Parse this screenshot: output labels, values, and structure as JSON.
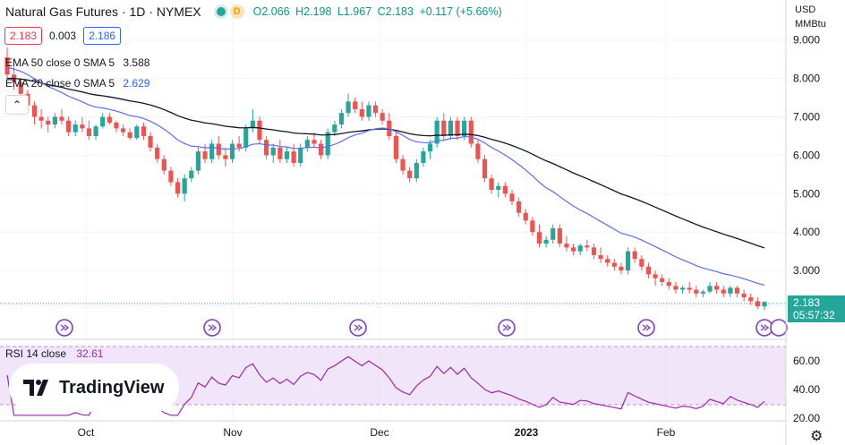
{
  "header": {
    "symbol": "Natural Gas Futures · 1D · NYMEX",
    "dot_label": "D",
    "open": "O2.066",
    "high": "H2.198",
    "low": "L1.967",
    "close": "C2.183",
    "change": "+0.117 (+5.66%)"
  },
  "prices": {
    "sell": "2.183",
    "spread": "0.003",
    "buy": "2.186"
  },
  "indicators": [
    {
      "label": "EMA 50 close 0 SMA 5",
      "value": "3.588"
    },
    {
      "label": "EMA 20 close 0 SMA 5",
      "value": "2.629"
    }
  ],
  "collapse_icon": "chevron-up-icon",
  "axis": {
    "currency": "USD",
    "unit": "MMBtu",
    "price_ticks": [
      "9.000",
      "8.000",
      "7.000",
      "6.000",
      "5.000",
      "4.000",
      "3.000"
    ],
    "last_price": "2.183",
    "countdown": "05:57:32",
    "rsi_ticks": [
      "60.00",
      "40.00",
      "20.00"
    ],
    "time_ticks": [
      "Oct",
      "Nov",
      "Dec",
      "2023",
      "Feb"
    ]
  },
  "rsi": {
    "label": "RSI 14 close",
    "value": "32.61"
  },
  "logo": {
    "text": "TradingView"
  },
  "colors": {
    "up": "#26a69a",
    "down": "#ef5350",
    "ema50": "#131722",
    "ema20": "#5b6cf2",
    "rsi": "#9c27b0",
    "rsi_band": "#ecdff7"
  },
  "chart_data": {
    "type": "candlestick",
    "title": "Natural Gas Futures · 1D · NYMEX",
    "x_ticks": [
      "Oct",
      "Nov",
      "Dec",
      "2023",
      "Feb"
    ],
    "ylim": [
      2.0,
      9.3
    ],
    "candles": [
      [
        8.55,
        8.8,
        8.0,
        8.1
      ],
      [
        8.1,
        8.3,
        7.7,
        7.9
      ],
      [
        7.9,
        8.0,
        7.5,
        7.6
      ],
      [
        7.6,
        7.7,
        7.2,
        7.3
      ],
      [
        7.3,
        7.4,
        6.8,
        7.0
      ],
      [
        7.0,
        7.2,
        6.7,
        6.9
      ],
      [
        6.9,
        7.0,
        6.6,
        6.8
      ],
      [
        6.8,
        7.1,
        6.7,
        7.0
      ],
      [
        7.0,
        7.2,
        6.8,
        6.9
      ],
      [
        6.9,
        7.0,
        6.5,
        6.6
      ],
      [
        6.6,
        6.9,
        6.5,
        6.8
      ],
      [
        6.8,
        7.0,
        6.6,
        6.7
      ],
      [
        6.7,
        6.9,
        6.4,
        6.5
      ],
      [
        6.5,
        6.8,
        6.4,
        6.75
      ],
      [
        6.75,
        7.1,
        6.7,
        7.0
      ],
      [
        7.0,
        7.1,
        6.8,
        6.85
      ],
      [
        6.85,
        6.9,
        6.6,
        6.7
      ],
      [
        6.7,
        6.8,
        6.5,
        6.6
      ],
      [
        6.6,
        6.7,
        6.4,
        6.45
      ],
      [
        6.45,
        6.8,
        6.4,
        6.75
      ],
      [
        6.75,
        6.85,
        6.4,
        6.5
      ],
      [
        6.5,
        6.6,
        6.1,
        6.2
      ],
      [
        6.2,
        6.3,
        5.8,
        5.9
      ],
      [
        5.9,
        6.0,
        5.5,
        5.6
      ],
      [
        5.6,
        5.7,
        5.2,
        5.3
      ],
      [
        5.3,
        5.4,
        4.9,
        5.0
      ],
      [
        5.0,
        5.5,
        4.8,
        5.4
      ],
      [
        5.4,
        5.7,
        5.3,
        5.6
      ],
      [
        5.6,
        6.2,
        5.5,
        6.1
      ],
      [
        6.1,
        6.3,
        5.8,
        5.9
      ],
      [
        5.9,
        6.4,
        5.8,
        6.3
      ],
      [
        6.3,
        6.5,
        5.9,
        6.0
      ],
      [
        6.0,
        6.2,
        5.7,
        5.9
      ],
      [
        5.9,
        6.4,
        5.8,
        6.3
      ],
      [
        6.3,
        6.5,
        6.1,
        6.2
      ],
      [
        6.2,
        6.8,
        6.1,
        6.7
      ],
      [
        6.7,
        7.2,
        6.6,
        6.9
      ],
      [
        6.9,
        7.0,
        6.3,
        6.4
      ],
      [
        6.4,
        6.5,
        5.9,
        6.0
      ],
      [
        6.0,
        6.3,
        5.8,
        6.2
      ],
      [
        6.2,
        6.4,
        5.8,
        5.9
      ],
      [
        5.9,
        6.2,
        5.8,
        6.1
      ],
      [
        6.1,
        6.3,
        5.7,
        5.8
      ],
      [
        5.8,
        6.3,
        5.7,
        6.2
      ],
      [
        6.2,
        6.5,
        6.1,
        6.4
      ],
      [
        6.4,
        6.6,
        6.2,
        6.3
      ],
      [
        6.3,
        6.4,
        5.9,
        6.0
      ],
      [
        6.0,
        6.7,
        5.9,
        6.6
      ],
      [
        6.6,
        6.9,
        6.5,
        6.8
      ],
      [
        6.8,
        7.2,
        6.7,
        7.1
      ],
      [
        7.1,
        7.6,
        7.0,
        7.4
      ],
      [
        7.4,
        7.5,
        7.1,
        7.2
      ],
      [
        7.2,
        7.4,
        6.9,
        7.0
      ],
      [
        7.0,
        7.4,
        6.9,
        7.3
      ],
      [
        7.3,
        7.4,
        7.0,
        7.1
      ],
      [
        7.1,
        7.2,
        6.8,
        6.9
      ],
      [
        6.9,
        7.1,
        6.4,
        6.5
      ],
      [
        6.5,
        6.6,
        5.8,
        5.9
      ],
      [
        5.9,
        6.0,
        5.5,
        5.6
      ],
      [
        5.6,
        5.7,
        5.3,
        5.4
      ],
      [
        5.4,
        5.9,
        5.3,
        5.8
      ],
      [
        5.8,
        6.2,
        5.7,
        6.1
      ],
      [
        6.1,
        6.4,
        5.9,
        6.3
      ],
      [
        6.3,
        7.0,
        6.2,
        6.9
      ],
      [
        6.9,
        7.1,
        6.4,
        6.5
      ],
      [
        6.5,
        7.0,
        6.4,
        6.9
      ],
      [
        6.9,
        7.0,
        6.4,
        6.5
      ],
      [
        6.5,
        7.0,
        6.4,
        6.9
      ],
      [
        6.9,
        7.0,
        6.2,
        6.3
      ],
      [
        6.3,
        6.4,
        5.8,
        5.9
      ],
      [
        5.9,
        6.0,
        5.3,
        5.4
      ],
      [
        5.4,
        5.5,
        5.0,
        5.1
      ],
      [
        5.1,
        5.3,
        4.9,
        5.2
      ],
      [
        5.2,
        5.3,
        4.9,
        5.0
      ],
      [
        5.0,
        5.1,
        4.7,
        4.8
      ],
      [
        4.8,
        4.9,
        4.4,
        4.5
      ],
      [
        4.5,
        4.6,
        4.2,
        4.3
      ],
      [
        4.3,
        4.4,
        3.9,
        4.0
      ],
      [
        4.0,
        4.2,
        3.6,
        3.7
      ],
      [
        3.7,
        3.9,
        3.6,
        3.8
      ],
      [
        3.8,
        4.2,
        3.7,
        4.1
      ],
      [
        4.1,
        4.2,
        3.6,
        3.7
      ],
      [
        3.7,
        3.9,
        3.5,
        3.6
      ],
      [
        3.6,
        3.7,
        3.4,
        3.5
      ],
      [
        3.5,
        3.7,
        3.4,
        3.65
      ],
      [
        3.65,
        3.8,
        3.5,
        3.6
      ],
      [
        3.6,
        3.7,
        3.3,
        3.4
      ],
      [
        3.4,
        3.6,
        3.2,
        3.3
      ],
      [
        3.3,
        3.4,
        3.1,
        3.2
      ],
      [
        3.2,
        3.3,
        3.0,
        3.1
      ],
      [
        3.1,
        3.2,
        2.9,
        3.0
      ],
      [
        3.0,
        3.6,
        2.9,
        3.5
      ],
      [
        3.5,
        3.6,
        3.2,
        3.3
      ],
      [
        3.3,
        3.4,
        3.0,
        3.1
      ],
      [
        3.1,
        3.2,
        2.8,
        2.9
      ],
      [
        2.9,
        3.0,
        2.6,
        2.8
      ],
      [
        2.8,
        2.9,
        2.6,
        2.7
      ],
      [
        2.7,
        2.8,
        2.5,
        2.6
      ],
      [
        2.6,
        2.7,
        2.4,
        2.5
      ],
      [
        2.5,
        2.6,
        2.4,
        2.55
      ],
      [
        2.55,
        2.7,
        2.4,
        2.5
      ],
      [
        2.5,
        2.6,
        2.3,
        2.4
      ],
      [
        2.4,
        2.5,
        2.3,
        2.45
      ],
      [
        2.45,
        2.7,
        2.4,
        2.6
      ],
      [
        2.6,
        2.7,
        2.4,
        2.5
      ],
      [
        2.5,
        2.6,
        2.3,
        2.4
      ],
      [
        2.4,
        2.6,
        2.3,
        2.55
      ],
      [
        2.55,
        2.6,
        2.3,
        2.4
      ],
      [
        2.4,
        2.5,
        2.2,
        2.3
      ],
      [
        2.3,
        2.4,
        2.1,
        2.2
      ],
      [
        2.2,
        2.3,
        2.0,
        2.066
      ],
      [
        2.066,
        2.198,
        1.967,
        2.183
      ]
    ],
    "series": [
      {
        "name": "EMA 50 close 0 SMA 5",
        "values_at_ticks": {
          "Oct": 7.0,
          "Nov": 6.9,
          "Dec": 6.6,
          "2023": 5.7,
          "Feb": 4.5
        },
        "last": 3.588
      },
      {
        "name": "EMA 20 close 0 SMA 5",
        "values_at_ticks": {
          "Oct": 6.8,
          "Nov": 6.2,
          "Dec": 6.6,
          "2023": 5.0,
          "Feb": 3.1
        },
        "last": 2.629
      }
    ],
    "rsi": {
      "label": "RSI 14 close",
      "last": 32.61,
      "band": [
        30,
        70
      ],
      "ylim": [
        20,
        70
      ]
    }
  }
}
